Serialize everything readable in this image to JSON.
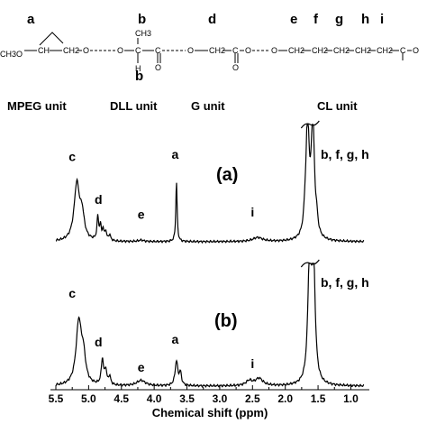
{
  "structure": {
    "site_letters": [
      "a",
      "b",
      "d",
      "e",
      "f",
      "g",
      "h",
      "i"
    ],
    "below_letter": "b",
    "atoms": {
      "ch3o": "CH3O",
      "ch_a": "CH",
      "ch2_a": "CH2",
      "o_ether": "O",
      "o_dll1": "O",
      "c_dll": "C",
      "h_dll": "H",
      "ch3_dll": "CH3",
      "c_dll2": "C",
      "o_dbl1": "O",
      "o_g1": "O",
      "ch2_g": "CH2",
      "c_g": "C",
      "o_dbl2": "O",
      "o_g2": "O",
      "o_cl": "O",
      "ch2_1": "CH2",
      "ch2_2": "CH2",
      "ch2_3": "CH2",
      "ch2_4": "CH2",
      "ch2_5": "CH2",
      "c_cl": "C",
      "o_dbl3": "O"
    },
    "units": [
      "MPEG unit",
      "DLL unit",
      "G unit",
      "CL unit"
    ]
  },
  "chart_data": {
    "type": "line",
    "title": "",
    "xlabel": "Chemical shift (ppm)",
    "ylabel": "",
    "xlim": [
      5.5,
      0.8
    ],
    "x_reversed": true,
    "xticks": [
      5.5,
      5.0,
      4.5,
      4.0,
      3.5,
      3.0,
      2.5,
      2.0,
      1.5,
      1.0
    ],
    "xtick_labels": [
      "5.5",
      "5.0",
      "4.5",
      "4.0",
      "3.5",
      "3.0",
      "2.5",
      "2.0",
      "1.5",
      "1.0"
    ],
    "grid": false,
    "series": [
      {
        "label": "(a)",
        "peaks": [
          {
            "x": 5.18,
            "y": 0.49,
            "w": 0.05
          },
          {
            "x": 5.1,
            "y": 0.2,
            "w": 0.04
          },
          {
            "x": 4.86,
            "y": 0.2,
            "w": 0.015
          },
          {
            "x": 4.82,
            "y": 0.12,
            "w": 0.015
          },
          {
            "x": 4.78,
            "y": 0.09,
            "w": 0.015
          },
          {
            "x": 4.74,
            "y": 0.08,
            "w": 0.015
          },
          {
            "x": 4.68,
            "y": 0.05,
            "w": 0.02
          },
          {
            "x": 4.2,
            "y": 0.012,
            "w": 0.05
          },
          {
            "x": 3.66,
            "y": 0.52,
            "w": 0.012
          },
          {
            "x": 2.42,
            "y": 0.035,
            "w": 0.09
          },
          {
            "x": 1.66,
            "y": 1.0,
            "w": 0.03
          },
          {
            "x": 1.58,
            "y": 1.0,
            "w": 0.03
          },
          {
            "x": 1.7,
            "y": 0.09,
            "w": 0.02
          },
          {
            "x": 1.52,
            "y": 0.1,
            "w": 0.02
          }
        ],
        "annotations": [
          {
            "text": "c",
            "x": 5.25,
            "y": 0.7
          },
          {
            "text": "d",
            "x": 4.85,
            "y": 0.33
          },
          {
            "text": "e",
            "x": 4.2,
            "y": 0.2
          },
          {
            "text": "a",
            "x": 3.68,
            "y": 0.72
          },
          {
            "text": "i",
            "x": 2.5,
            "y": 0.22
          },
          {
            "text": "b, f, g, h",
            "x": 0.8,
            "y": 0.72
          }
        ]
      },
      {
        "label": "(b)",
        "peaks": [
          {
            "x": 5.15,
            "y": 0.52,
            "w": 0.05
          },
          {
            "x": 5.08,
            "y": 0.2,
            "w": 0.04
          },
          {
            "x": 4.79,
            "y": 0.21,
            "w": 0.02
          },
          {
            "x": 4.74,
            "y": 0.12,
            "w": 0.018
          },
          {
            "x": 4.68,
            "y": 0.07,
            "w": 0.02
          },
          {
            "x": 4.2,
            "y": 0.045,
            "w": 0.08
          },
          {
            "x": 3.66,
            "y": 0.2,
            "w": 0.025
          },
          {
            "x": 3.6,
            "y": 0.1,
            "w": 0.02
          },
          {
            "x": 2.55,
            "y": 0.04,
            "w": 0.06
          },
          {
            "x": 2.4,
            "y": 0.06,
            "w": 0.07
          },
          {
            "x": 1.63,
            "y": 1.0,
            "w": 0.03
          },
          {
            "x": 1.57,
            "y": 1.0,
            "w": 0.03
          }
        ],
        "annotations": [
          {
            "text": "c",
            "x": 5.25,
            "y": 0.73
          },
          {
            "text": "d",
            "x": 4.85,
            "y": 0.33
          },
          {
            "text": "e",
            "x": 4.2,
            "y": 0.12
          },
          {
            "text": "a",
            "x": 3.68,
            "y": 0.35
          },
          {
            "text": "i",
            "x": 2.5,
            "y": 0.15
          },
          {
            "text": "b, f, g, h",
            "x": 0.8,
            "y": 0.82
          }
        ]
      }
    ]
  }
}
